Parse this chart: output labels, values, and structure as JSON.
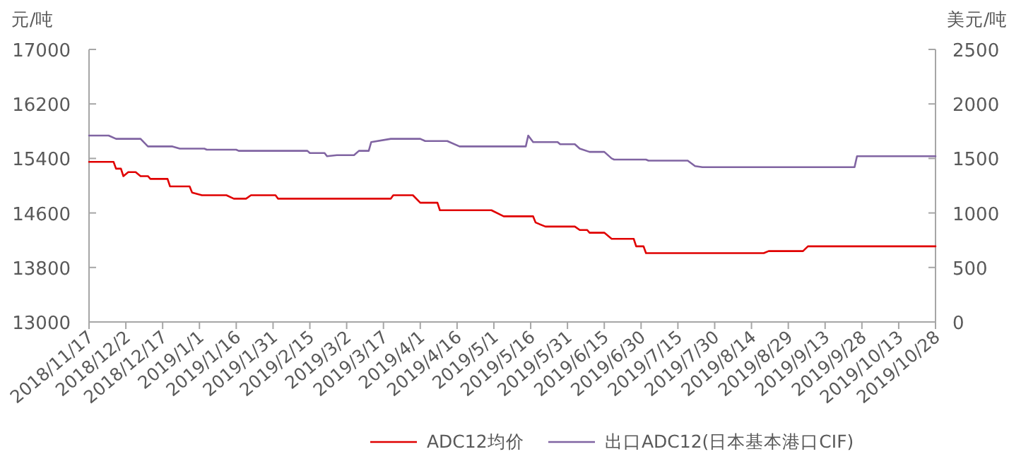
{
  "chart_data": {
    "type": "line",
    "ylabel": "元/吨",
    "y2label": "美元/吨",
    "legend": "bottom",
    "grid": false,
    "xlim": [
      "2018-11-17",
      "2019-10-28"
    ],
    "xticks": [
      {
        "value": "2018-11-17",
        "label": "2018/11/17"
      },
      {
        "value": "2018-12-02",
        "label": "2018/12/2"
      },
      {
        "value": "2018-12-17",
        "label": "2018/12/17"
      },
      {
        "value": "2019-01-01",
        "label": "2019/1/1"
      },
      {
        "value": "2019-01-16",
        "label": "2019/1/16"
      },
      {
        "value": "2019-01-31",
        "label": "2019/1/31"
      },
      {
        "value": "2019-02-15",
        "label": "2019/2/15"
      },
      {
        "value": "2019-03-02",
        "label": "2019/3/2"
      },
      {
        "value": "2019-03-17",
        "label": "2019/3/17"
      },
      {
        "value": "2019-04-01",
        "label": "2019/4/1"
      },
      {
        "value": "2019-04-16",
        "label": "2019/4/16"
      },
      {
        "value": "2019-05-01",
        "label": "2019/5/1"
      },
      {
        "value": "2019-05-16",
        "label": "2019/5/16"
      },
      {
        "value": "2019-05-31",
        "label": "2019/5/31"
      },
      {
        "value": "2019-06-15",
        "label": "2019/6/15"
      },
      {
        "value": "2019-06-30",
        "label": "2019/6/30"
      },
      {
        "value": "2019-07-15",
        "label": "2019/7/15"
      },
      {
        "value": "2019-07-30",
        "label": "2019/7/30"
      },
      {
        "value": "2019-08-14",
        "label": "2019/8/14"
      },
      {
        "value": "2019-08-29",
        "label": "2019/8/29"
      },
      {
        "value": "2019-09-13",
        "label": "2019/9/13"
      },
      {
        "value": "2019-09-28",
        "label": "2019/9/28"
      },
      {
        "value": "2019-10-13",
        "label": "2019/10/13"
      },
      {
        "value": "2019-10-28",
        "label": "2019/10/28"
      }
    ],
    "ylim": [
      13000,
      17000
    ],
    "yticks": [
      13000,
      13800,
      14600,
      15400,
      16200,
      17000
    ],
    "y2lim": [
      0,
      2500
    ],
    "y2ticks": [
      0,
      500,
      1000,
      1500,
      2000,
      2500
    ],
    "series": [
      {
        "name": "ADC12均价",
        "color": "#e00000",
        "x": [
          "2018-11-17",
          "2018-11-27",
          "2018-11-28",
          "2018-11-30",
          "2018-12-01",
          "2018-12-03",
          "2018-12-06",
          "2018-12-08",
          "2018-12-11",
          "2018-12-12",
          "2018-12-19",
          "2018-12-20",
          "2018-12-28",
          "2018-12-29",
          "2019-01-02",
          "2019-01-12",
          "2019-01-15",
          "2019-01-20",
          "2019-01-22",
          "2019-02-01",
          "2019-02-02",
          "2019-03-20",
          "2019-03-21",
          "2019-03-29",
          "2019-04-01",
          "2019-04-08",
          "2019-04-09",
          "2019-04-30",
          "2019-05-05",
          "2019-05-17",
          "2019-05-18",
          "2019-05-22",
          "2019-06-03",
          "2019-06-05",
          "2019-06-08",
          "2019-06-09",
          "2019-06-15",
          "2019-06-18",
          "2019-06-27",
          "2019-06-28",
          "2019-07-01",
          "2019-07-02",
          "2019-08-19",
          "2019-08-21",
          "2019-09-04",
          "2019-09-06",
          "2019-10-28"
        ],
        "values": [
          15350,
          15350,
          15250,
          15250,
          15140,
          15200,
          15200,
          15140,
          15140,
          15100,
          15100,
          14990,
          14990,
          14900,
          14860,
          14860,
          14810,
          14810,
          14860,
          14860,
          14810,
          14810,
          14860,
          14860,
          14750,
          14750,
          14640,
          14640,
          14550,
          14550,
          14460,
          14400,
          14400,
          14350,
          14350,
          14310,
          14310,
          14220,
          14220,
          14110,
          14110,
          14010,
          14010,
          14040,
          14040,
          14110,
          14110
        ]
      },
      {
        "name": "出口ADC12(日本基本港口CIF)",
        "color": "#8064a2",
        "axis": "y2",
        "x": [
          "2018-11-17",
          "2018-11-25",
          "2018-11-28",
          "2018-12-08",
          "2018-12-11",
          "2018-12-21",
          "2018-12-24",
          "2019-01-03",
          "2019-01-04",
          "2019-01-16",
          "2019-01-17",
          "2019-02-14",
          "2019-02-15",
          "2019-02-21",
          "2019-02-22",
          "2019-02-26",
          "2019-03-05",
          "2019-03-07",
          "2019-03-11",
          "2019-03-12",
          "2019-03-20",
          "2019-04-01",
          "2019-04-03",
          "2019-04-12",
          "2019-04-17",
          "2019-05-14",
          "2019-05-15",
          "2019-05-17",
          "2019-05-27",
          "2019-05-28",
          "2019-06-03",
          "2019-06-05",
          "2019-06-09",
          "2019-06-15",
          "2019-06-18",
          "2019-06-19",
          "2019-07-02",
          "2019-07-03",
          "2019-07-19",
          "2019-07-22",
          "2019-07-25",
          "2019-09-25",
          "2019-09-26",
          "2019-10-28"
        ],
        "values": [
          1710,
          1710,
          1680,
          1680,
          1610,
          1610,
          1590,
          1590,
          1580,
          1580,
          1570,
          1570,
          1550,
          1550,
          1520,
          1530,
          1530,
          1570,
          1570,
          1650,
          1680,
          1680,
          1660,
          1660,
          1610,
          1610,
          1710,
          1650,
          1650,
          1630,
          1630,
          1590,
          1560,
          1560,
          1500,
          1490,
          1490,
          1480,
          1480,
          1430,
          1420,
          1420,
          1520,
          1520
        ]
      }
    ]
  }
}
